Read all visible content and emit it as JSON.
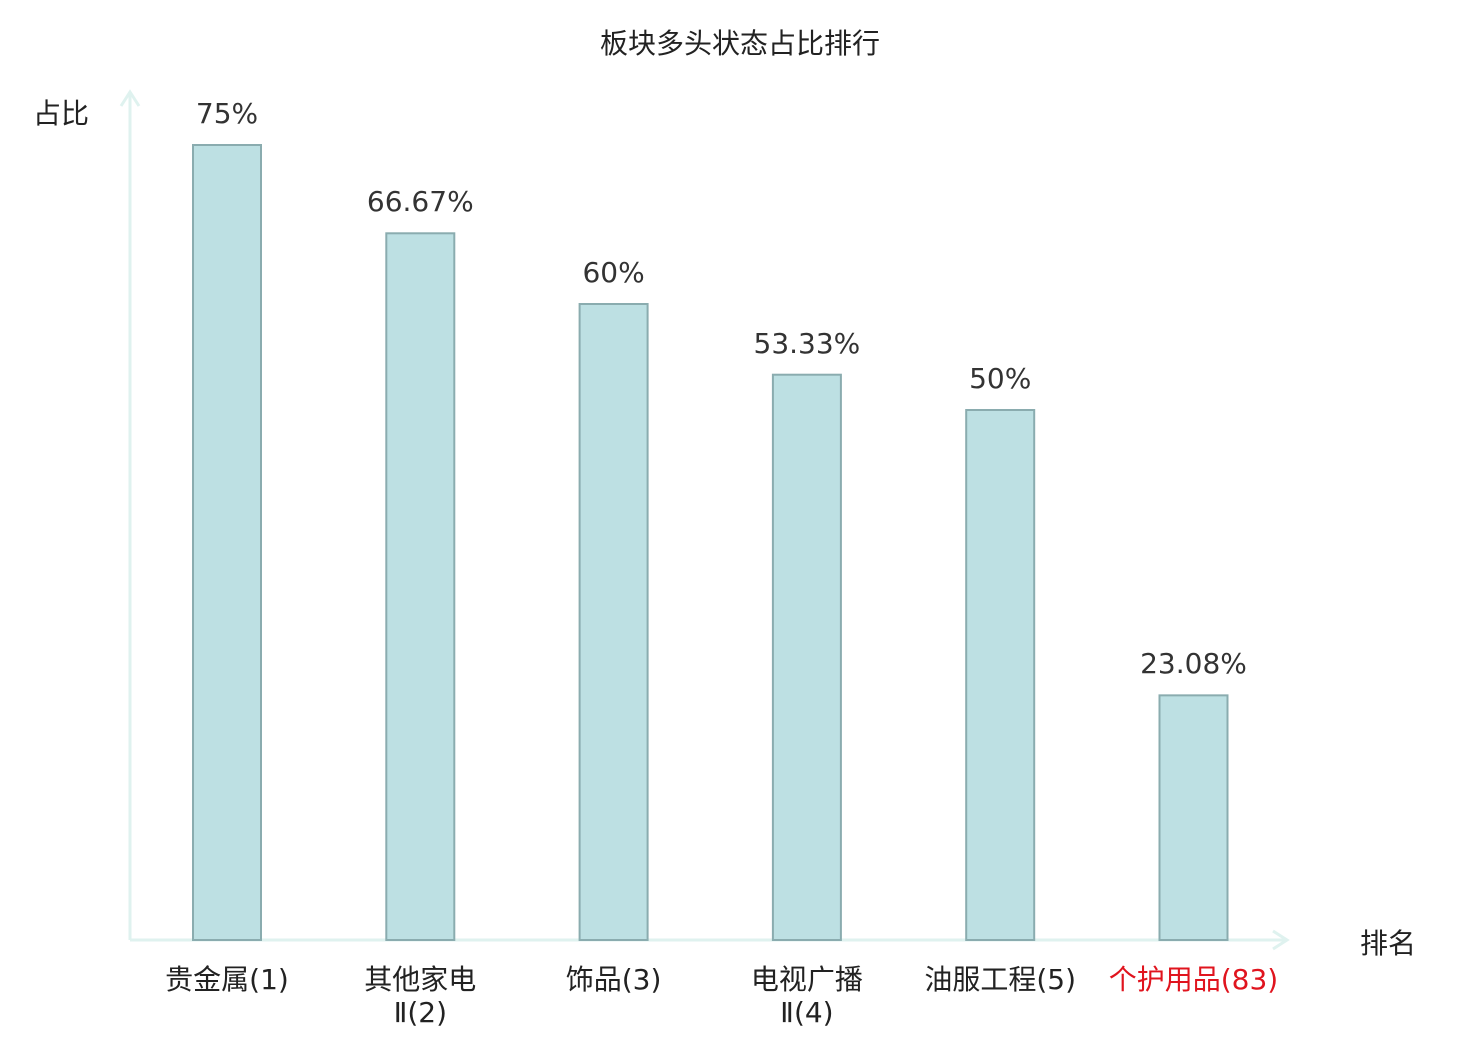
{
  "chart_data": {
    "type": "bar",
    "title": "板块多头状态占比排行",
    "ylabel": "占比",
    "xlabel": "排名",
    "categories": [
      "贵金属(1)",
      "其他家电\nⅡ(2)",
      "饰品(3)",
      "电视广播\nⅡ(4)",
      "油服工程(5)",
      "个护用品(83)"
    ],
    "values": [
      75,
      66.67,
      60,
      53.33,
      50,
      23.08
    ],
    "value_labels": [
      "75%",
      "66.67%",
      "60%",
      "53.33%",
      "50%",
      "23.08%"
    ],
    "highlight_index": 5,
    "ylim": [
      0,
      80
    ],
    "grid": false,
    "colors": {
      "bar_fill": "#bde0e3",
      "bar_stroke": "#8aacaf",
      "axis": "#dff2ef",
      "highlight": "#e0141e"
    }
  }
}
